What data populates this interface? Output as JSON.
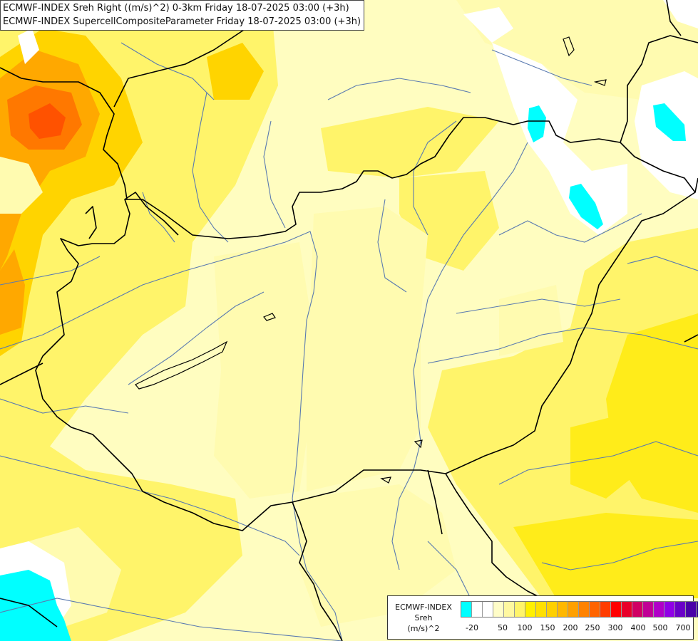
{
  "header": {
    "line1": "ECMWF-INDEX Sreh Right ((m/s)^2) 0-3km Friday 18-07-2025 03:00 (+3h)",
    "line2": "ECMWF-INDEX SupercellCompositeParameter Friday 18-07-2025 03:00 (+3h)"
  },
  "map": {
    "background_color": "#fffdc0",
    "fill_colors": {
      "light": "#fffbb0",
      "yellow": "#fff46a",
      "bright_yellow": "#ffec1a",
      "gold": "#ffd400",
      "orange": "#ffa800",
      "dark_orange": "#ff7800",
      "red_orange": "#ff5200",
      "white": "#ffffff",
      "cyan": "#00ffff"
    },
    "border_color": "#000000",
    "river_color": "#5a7ab0"
  },
  "legend": {
    "title_line1": "ECMWF-INDEX",
    "title_line2": "Sreh",
    "title_line3": "(m/s)^2",
    "swatches": [
      "#00ffff",
      "#ffffff",
      "#ffffff",
      "#fffdc8",
      "#fff8a0",
      "#fff46a",
      "#fff000",
      "#ffe000",
      "#ffd000",
      "#ffb800",
      "#ffa000",
      "#ff8200",
      "#ff6400",
      "#ff3c00",
      "#ff0000",
      "#e8002a",
      "#d00064",
      "#c00096",
      "#b000c8",
      "#9000e6",
      "#6a00c8",
      "#4a00a8",
      "#300090",
      "#1c007a"
    ],
    "tick_labels": [
      "-20",
      "50",
      "100",
      "150",
      "200",
      "250",
      "300",
      "400",
      "500",
      "700"
    ]
  }
}
